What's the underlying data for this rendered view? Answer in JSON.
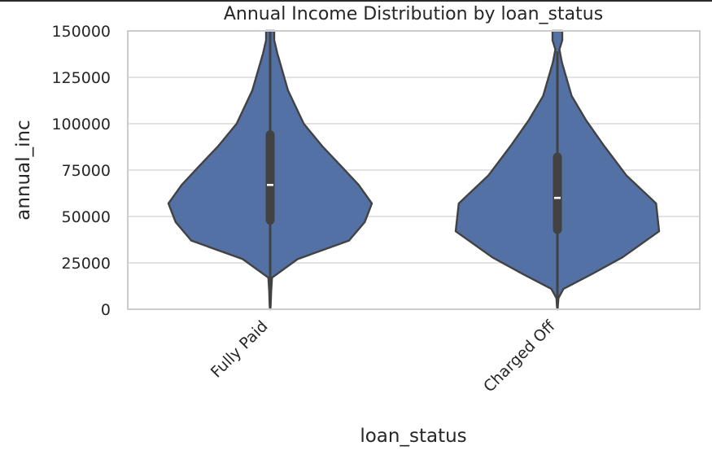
{
  "chart_data": {
    "type": "violin",
    "title": "Annual Income Distribution by loan_status",
    "xlabel": "loan_status",
    "ylabel": "annual_inc",
    "ylim": [
      0,
      150000
    ],
    "yticks": [
      0,
      25000,
      50000,
      75000,
      100000,
      125000,
      150000
    ],
    "ytick_labels": [
      "0",
      "25000",
      "50000",
      "75000",
      "100000",
      "125000",
      "150000"
    ],
    "grid": true,
    "color": "#5471a5",
    "categories": [
      "Fully Paid",
      "Charged Off"
    ],
    "series": [
      {
        "category": "Fully Paid",
        "median": 67000,
        "q1": 48000,
        "q3": 94000,
        "whisker_low": 0,
        "whisker_high": 150000,
        "density": [
          [
            0,
            0.002
          ],
          [
            2000,
            0.005
          ],
          [
            10000,
            0.01
          ],
          [
            17000,
            0.018
          ],
          [
            27000,
            0.27
          ],
          [
            37000,
            0.775
          ],
          [
            47000,
            0.93
          ],
          [
            57000,
            1.0
          ],
          [
            67000,
            0.87
          ],
          [
            77000,
            0.7
          ],
          [
            88000,
            0.51
          ],
          [
            100000,
            0.33
          ],
          [
            118000,
            0.175
          ],
          [
            138000,
            0.07
          ],
          [
            145000,
            0.04
          ],
          [
            150000,
            0.04
          ]
        ]
      },
      {
        "category": "Charged Off",
        "median": 60000,
        "q1": 43000,
        "q3": 82000,
        "whisker_low": 0,
        "whisker_high": 139000,
        "density": [
          [
            0,
            0.002
          ],
          [
            2000,
            0.005
          ],
          [
            6000,
            0.01
          ],
          [
            11000,
            0.06
          ],
          [
            19000,
            0.34
          ],
          [
            28000,
            0.64
          ],
          [
            42000,
            1.0
          ],
          [
            57000,
            0.97
          ],
          [
            72000,
            0.68
          ],
          [
            88000,
            0.46
          ],
          [
            102000,
            0.28
          ],
          [
            115000,
            0.14
          ],
          [
            133000,
            0.045
          ],
          [
            140000,
            0.02
          ],
          [
            145000,
            0.048
          ],
          [
            150000,
            0.048
          ]
        ]
      }
    ]
  }
}
